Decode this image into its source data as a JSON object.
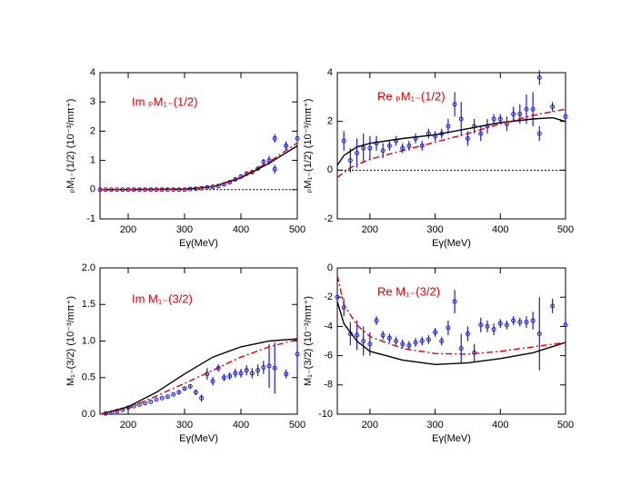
{
  "chart_data": [
    {
      "type": "line",
      "annotation": "Im ₚM₁₋(1/2)",
      "x_label": "Eγ(MeV)",
      "y_label": "ₚM₁₋(1/2)  (10⁻³/mπ⁺)",
      "xlim": [
        150,
        500
      ],
      "xticks": [
        200,
        300,
        400,
        500
      ],
      "ylim": [
        -1,
        4
      ],
      "yticks": [
        -1,
        0,
        1,
        2,
        3,
        4
      ],
      "reference_line": 0,
      "series": [
        {
          "style": "points",
          "color": "#1a1adb",
          "x": [
            150,
            160,
            170,
            180,
            190,
            200,
            210,
            220,
            230,
            240,
            250,
            260,
            270,
            280,
            290,
            300,
            310,
            320,
            330,
            340,
            350,
            360,
            370,
            380,
            390,
            400,
            410,
            420,
            430,
            440,
            450,
            460,
            460,
            480,
            500
          ],
          "values": [
            0,
            0,
            0,
            0,
            0,
            0,
            0,
            0,
            0,
            0,
            0,
            0,
            0,
            0,
            0,
            0,
            0.02,
            0.03,
            0.05,
            0.08,
            0.1,
            0.12,
            0.18,
            0.25,
            0.35,
            0.45,
            0.55,
            0.6,
            0.72,
            0.95,
            1.0,
            1.75,
            0.7,
            1.5,
            1.75
          ],
          "errors": [
            0.02,
            0.02,
            0.02,
            0.02,
            0.02,
            0.02,
            0.02,
            0.02,
            0.02,
            0.02,
            0.02,
            0.02,
            0.02,
            0.02,
            0.02,
            0.02,
            0.02,
            0.02,
            0.03,
            0.03,
            0.03,
            0.03,
            0.04,
            0.04,
            0.05,
            0.05,
            0.06,
            0.06,
            0.08,
            0.1,
            0.15,
            0.15,
            0.15,
            0.15,
            0.1
          ]
        },
        {
          "style": "solid",
          "color": "#000000",
          "x": [
            150,
            300,
            350,
            400,
            450,
            500
          ],
          "values": [
            0,
            0.02,
            0.1,
            0.4,
            0.9,
            1.5
          ]
        },
        {
          "style": "dashdot",
          "color": "#e00000",
          "x": [
            150,
            300,
            350,
            400,
            450,
            500
          ],
          "values": [
            0,
            0.02,
            0.11,
            0.42,
            0.95,
            1.6
          ]
        }
      ]
    },
    {
      "type": "line",
      "annotation": "Re ₚM₁₋(1/2)",
      "x_label": "Eγ(MeV)",
      "y_label": "ₚM₁₋(1/2)  (10⁻³/mπ⁺)",
      "xlim": [
        150,
        500
      ],
      "xticks": [
        200,
        300,
        400,
        500
      ],
      "ylim": [
        -2,
        4
      ],
      "yticks": [
        -2,
        0,
        2,
        4
      ],
      "reference_line": 0,
      "series": [
        {
          "style": "points",
          "color": "#1a1adb",
          "x": [
            160,
            170,
            180,
            190,
            200,
            210,
            220,
            230,
            240,
            250,
            260,
            270,
            280,
            290,
            300,
            310,
            320,
            330,
            340,
            350,
            360,
            370,
            380,
            390,
            400,
            410,
            420,
            430,
            440,
            450,
            460,
            460,
            480,
            500
          ],
          "values": [
            1.2,
            0.4,
            0.7,
            0.9,
            0.9,
            1.1,
            0.8,
            1.0,
            1.2,
            0.9,
            1.0,
            1.3,
            1.0,
            1.5,
            1.4,
            1.5,
            1.8,
            2.7,
            2.1,
            1.3,
            1.8,
            1.5,
            1.8,
            2.1,
            2.1,
            1.9,
            2.3,
            2.3,
            2.5,
            2.5,
            3.8,
            1.5,
            2.6,
            2.2
          ],
          "errors": [
            0.4,
            0.5,
            0.6,
            0.6,
            0.5,
            0.3,
            0.3,
            0.2,
            0.2,
            0.2,
            0.2,
            0.2,
            0.2,
            0.2,
            0.2,
            0.2,
            0.3,
            0.5,
            0.7,
            0.3,
            0.3,
            0.3,
            0.3,
            0.2,
            0.2,
            0.3,
            0.3,
            0.4,
            0.6,
            0.7,
            0.3,
            0.3,
            0.2,
            0.3
          ]
        },
        {
          "style": "solid",
          "color": "#000000",
          "x": [
            150,
            160,
            180,
            200,
            250,
            300,
            350,
            400,
            450,
            480,
            500
          ],
          "values": [
            0.2,
            0.6,
            0.95,
            1.1,
            1.3,
            1.45,
            1.7,
            1.95,
            2.1,
            2.15,
            2.0
          ]
        },
        {
          "style": "dashdot",
          "color": "#e00000",
          "x": [
            150,
            170,
            200,
            250,
            300,
            350,
            400,
            450,
            500
          ],
          "values": [
            -0.3,
            0.1,
            0.45,
            0.8,
            1.15,
            1.5,
            1.9,
            2.25,
            2.5
          ]
        }
      ]
    },
    {
      "type": "line",
      "annotation": "Im M₁₋(3/2)",
      "x_label": "Eγ(MeV)",
      "y_label": "M₁₋(3/2)  (10⁻³/mπ⁺)",
      "xlim": [
        150,
        500
      ],
      "xticks": [
        200,
        300,
        400,
        500
      ],
      "ylim": [
        0,
        2
      ],
      "yticks": [
        {
          "value": 0,
          "label": "0.0"
        },
        {
          "value": 0.5,
          "label": "0.5"
        },
        {
          "value": 1,
          "label": "1.0"
        },
        {
          "value": 1.5,
          "label": "1.5"
        },
        {
          "value": 2,
          "label": "2.0"
        }
      ],
      "series": [
        {
          "style": "points",
          "color": "#1a1adb",
          "x": [
            160,
            170,
            180,
            190,
            200,
            210,
            220,
            230,
            240,
            250,
            260,
            270,
            280,
            290,
            300,
            310,
            320,
            330,
            340,
            350,
            360,
            370,
            380,
            390,
            400,
            410,
            420,
            430,
            440,
            450,
            460,
            480,
            500
          ],
          "values": [
            0.01,
            0.02,
            0.04,
            0.06,
            0.09,
            0.11,
            0.13,
            0.15,
            0.17,
            0.2,
            0.22,
            0.24,
            0.27,
            0.3,
            0.35,
            0.38,
            0.3,
            0.22,
            0.55,
            0.45,
            0.63,
            0.5,
            0.52,
            0.56,
            0.56,
            0.6,
            0.56,
            0.6,
            0.64,
            0.66,
            0.63,
            0.55,
            0.82
          ],
          "errors": [
            0.01,
            0.01,
            0.01,
            0.01,
            0.01,
            0.01,
            0.01,
            0.01,
            0.01,
            0.01,
            0.01,
            0.01,
            0.01,
            0.02,
            0.02,
            0.03,
            0.04,
            0.05,
            0.08,
            0.06,
            0.05,
            0.05,
            0.05,
            0.06,
            0.06,
            0.07,
            0.07,
            0.08,
            0.09,
            0.3,
            0.35,
            0.06,
            0.2
          ]
        },
        {
          "style": "solid",
          "color": "#000000",
          "x": [
            150,
            200,
            250,
            300,
            350,
            400,
            450,
            500
          ],
          "values": [
            0,
            0.1,
            0.3,
            0.55,
            0.78,
            0.92,
            1.0,
            1.03
          ]
        },
        {
          "style": "dashdot",
          "color": "#e00000",
          "x": [
            150,
            200,
            250,
            300,
            350,
            400,
            450,
            500
          ],
          "values": [
            0,
            0.08,
            0.25,
            0.42,
            0.6,
            0.78,
            0.92,
            1.02
          ]
        }
      ]
    },
    {
      "type": "line",
      "annotation": "Re M₁₋(3/2)",
      "x_label": "Eγ(MeV)",
      "y_label": "M₁₋(3/2)  (10⁻³/mπ⁺)",
      "xlim": [
        150,
        500
      ],
      "xticks": [
        200,
        300,
        400,
        500
      ],
      "ylim": [
        -10,
        0
      ],
      "yticks": [
        -10,
        -8,
        -6,
        -4,
        -2,
        0
      ],
      "series": [
        {
          "style": "points",
          "color": "#1a1adb",
          "x": [
            150,
            160,
            170,
            180,
            190,
            200,
            210,
            220,
            230,
            240,
            250,
            260,
            270,
            280,
            290,
            300,
            310,
            320,
            330,
            340,
            350,
            360,
            370,
            380,
            390,
            400,
            410,
            420,
            430,
            440,
            450,
            460,
            480,
            500
          ],
          "values": [
            -2.0,
            -2.7,
            -4.5,
            -4.6,
            -5.0,
            -5.2,
            -3.6,
            -4.6,
            -4.8,
            -5.0,
            -5.2,
            -5.3,
            -5.1,
            -5.0,
            -4.9,
            -4.4,
            -5.0,
            -4.1,
            -2.3,
            -5.5,
            -4.5,
            -5.8,
            -3.9,
            -4.0,
            -4.2,
            -3.8,
            -3.9,
            -3.6,
            -3.7,
            -3.7,
            -3.6,
            -4.5,
            -2.6,
            -3.9
          ],
          "errors": [
            0.4,
            0.6,
            0.8,
            1.0,
            1.0,
            0.8,
            0.3,
            0.3,
            0.3,
            0.3,
            0.3,
            0.3,
            0.3,
            0.3,
            0.3,
            0.3,
            0.3,
            0.5,
            0.8,
            1.0,
            0.5,
            0.6,
            0.5,
            0.4,
            0.4,
            0.3,
            0.3,
            0.3,
            0.3,
            0.4,
            0.6,
            2.5,
            0.5,
            0.6
          ]
        },
        {
          "style": "solid",
          "color": "#000000",
          "x": [
            150,
            160,
            180,
            200,
            250,
            300,
            350,
            400,
            450,
            500
          ],
          "values": [
            -2.3,
            -3.8,
            -5.0,
            -5.7,
            -6.3,
            -6.6,
            -6.5,
            -6.2,
            -5.8,
            -5.1
          ]
        },
        {
          "style": "dashdot",
          "color": "#e00000",
          "x": [
            150,
            160,
            180,
            200,
            250,
            300,
            350,
            400,
            450,
            500
          ],
          "values": [
            -0.5,
            -2.5,
            -3.9,
            -4.7,
            -5.5,
            -5.85,
            -5.9,
            -5.7,
            -5.4,
            -5.1
          ]
        }
      ]
    }
  ]
}
